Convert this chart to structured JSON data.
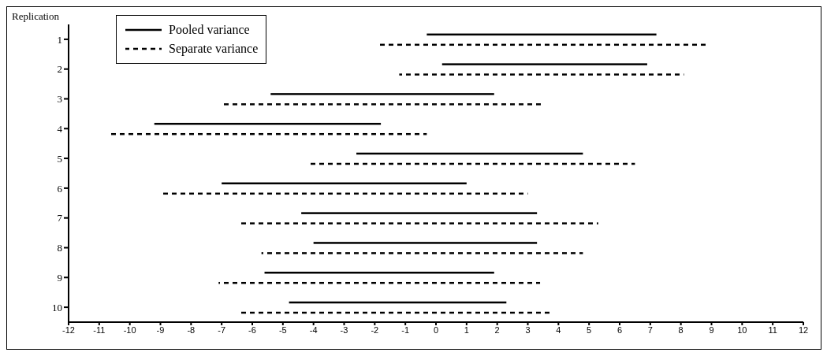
{
  "chart_data": {
    "type": "bar",
    "orientation": "horizontal",
    "ylabel": "Replication",
    "categories": [
      "1",
      "2",
      "3",
      "4",
      "5",
      "6",
      "7",
      "8",
      "9",
      "10"
    ],
    "series": [
      {
        "name": "Pooled variance",
        "color": "#000000",
        "line_style": "solid",
        "base": [
          -0.3,
          0.2,
          -5.4,
          -9.2,
          -2.6,
          -7.0,
          -4.4,
          -4.0,
          -5.6,
          -4.8
        ],
        "values": [
          7.5,
          6.7,
          7.3,
          7.4,
          7.4,
          8.0,
          7.7,
          7.3,
          7.5,
          7.1
        ]
      },
      {
        "name": "Separate variance",
        "color": "#000000",
        "line_style": "dashed",
        "base": [
          -1.9,
          -1.2,
          -7.0,
          -10.7,
          -4.2,
          -9.0,
          -6.4,
          -5.7,
          -7.1,
          -6.4
        ],
        "values": [
          10.8,
          9.3,
          10.5,
          10.4,
          10.7,
          12.0,
          11.7,
          10.5,
          10.5,
          10.2
        ]
      }
    ],
    "xlim": [
      -12,
      12
    ],
    "xticks": [
      -12,
      -11,
      -10,
      -9,
      -8,
      -7,
      -6,
      -5,
      -4,
      -3,
      -2,
      -1,
      0,
      1,
      2,
      3,
      4,
      5,
      6,
      7,
      8,
      9,
      10,
      11,
      12
    ],
    "grid": false,
    "legend": "top left"
  }
}
